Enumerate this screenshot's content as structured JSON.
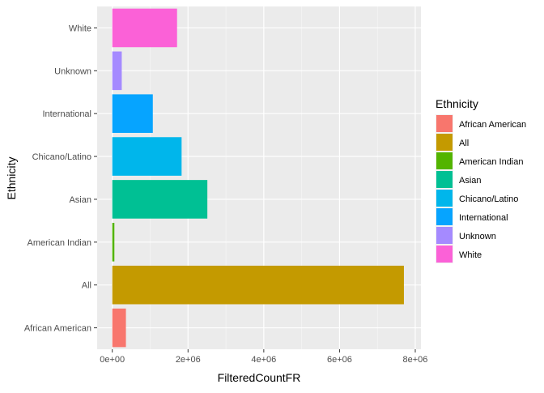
{
  "chart_data": {
    "type": "bar",
    "orientation": "horizontal",
    "xlabel": "FilteredCountFR",
    "ylabel": "Ethnicity",
    "xlim": [
      -400000,
      8150000
    ],
    "x_ticks": [
      0,
      2000000,
      4000000,
      6000000,
      8000000
    ],
    "x_tick_labels": [
      "0e+00",
      "2e+06",
      "4e+06",
      "6e+06",
      "8e+06"
    ],
    "categories": [
      "African American",
      "All",
      "American Indian",
      "Asian",
      "Chicano/Latino",
      "International",
      "Unknown",
      "White"
    ],
    "values": [
      360000,
      7700000,
      55000,
      2510000,
      1830000,
      1070000,
      250000,
      1710000
    ],
    "colors": [
      "#F8766D",
      "#C49A00",
      "#53B400",
      "#00C094",
      "#00B6EB",
      "#06A4FF",
      "#A58AFF",
      "#FB61D7"
    ],
    "grid": true,
    "legend": {
      "title": "Ethnicity",
      "placement": "right",
      "entries": [
        "African American",
        "All",
        "American Indian",
        "Asian",
        "Chicano/Latino",
        "International",
        "Unknown",
        "White"
      ]
    }
  }
}
